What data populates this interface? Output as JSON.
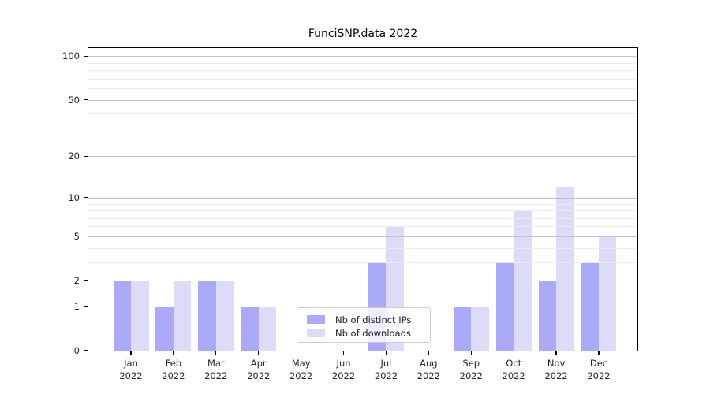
{
  "title": "FunciSNP.data 2022",
  "chart_data": {
    "type": "bar",
    "title": "FunciSNP.data 2022",
    "categories": [
      "Jan 2022",
      "Feb 2022",
      "Mar 2022",
      "Apr 2022",
      "May 2022",
      "Jun 2022",
      "Jul 2022",
      "Aug 2022",
      "Sep 2022",
      "Oct 2022",
      "Nov 2022",
      "Dec 2022"
    ],
    "months": [
      "Jan",
      "Feb",
      "Mar",
      "Apr",
      "May",
      "Jun",
      "Jul",
      "Aug",
      "Sep",
      "Oct",
      "Nov",
      "Dec"
    ],
    "year_label": "2022",
    "series": [
      {
        "name": "Nb of distinct IPs",
        "color": "#aaaaf8",
        "values": [
          2,
          1,
          2,
          1,
          0,
          0,
          3,
          0,
          1,
          3,
          2,
          3
        ]
      },
      {
        "name": "Nb of downloads",
        "color": "#dcdcf8",
        "values": [
          2,
          2,
          2,
          1,
          0,
          0,
          6,
          0,
          1,
          8,
          12,
          5
        ]
      }
    ],
    "yticks": [
      0,
      1,
      2,
      5,
      10,
      20,
      50,
      100
    ],
    "minor_gridlines": [
      3,
      4,
      6,
      7,
      8,
      9,
      30,
      40,
      60,
      70,
      80,
      90
    ],
    "scale": "log1p",
    "ylim": [
      0,
      113
    ],
    "xlabel": "",
    "ylabel": "",
    "grid": true,
    "legend": {
      "position": "lower center",
      "entries": [
        {
          "label": "Nb of distinct IPs",
          "color": "#aaaaf8"
        },
        {
          "label": "Nb of downloads",
          "color": "#dcdcf8"
        }
      ]
    }
  },
  "colors": {
    "bar_distinct_ips": "#aaaaf8",
    "bar_downloads": "#dcdcf8",
    "grid_major": "#c3c3c3",
    "grid_minor": "#ececec",
    "frame": "#000000"
  }
}
